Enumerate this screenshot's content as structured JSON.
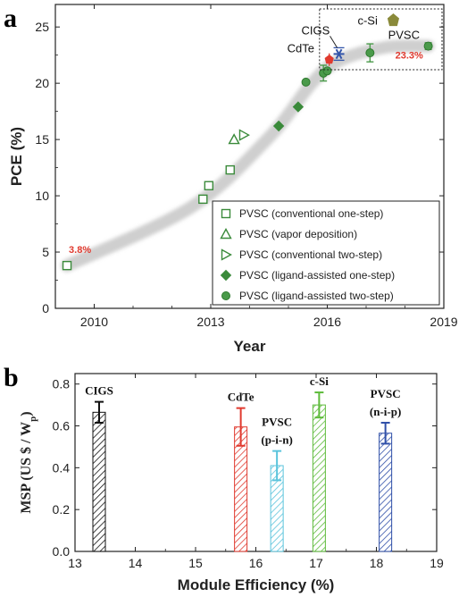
{
  "chart_data": [
    {
      "panel": "a",
      "type": "scatter",
      "xlabel": "Year",
      "ylabel": "PCE (%)",
      "xlim": [
        2009,
        2019
      ],
      "ylim": [
        0,
        27
      ],
      "xticks": [
        "2010",
        "2013",
        "2016",
        "2019"
      ],
      "yticks": [
        "0",
        "5",
        "10",
        "15",
        "20",
        "25"
      ],
      "legend_position": "bottom-right",
      "series": [
        {
          "name": "PVSC (conventional one-step)",
          "marker": "open-square",
          "color": "#3a8a3a",
          "points": [
            [
              2009.3,
              3.8
            ],
            [
              2012.8,
              9.7
            ],
            [
              2012.95,
              10.9
            ],
            [
              2013.5,
              12.3
            ]
          ]
        },
        {
          "name": "PVSC (vapor deposition)",
          "marker": "open-triangle-up",
          "color": "#3a8a3a",
          "points": [
            [
              2013.6,
              15.0
            ]
          ]
        },
        {
          "name": "PVSC (conventional two-step)",
          "marker": "open-triangle-right",
          "color": "#3a8a3a",
          "points": [
            [
              2013.85,
              15.4
            ]
          ]
        },
        {
          "name": "PVSC (ligand-assisted one-step)",
          "marker": "filled-diamond",
          "color": "#3a8a3a",
          "points": [
            [
              2014.75,
              16.2
            ],
            [
              2015.25,
              17.9
            ]
          ]
        },
        {
          "name": "PVSC (ligand-assisted two-step)",
          "marker": "filled-circle",
          "color": "#4a9a4a",
          "points": [
            [
              2015.45,
              20.1
            ],
            [
              2015.9,
              20.9
            ],
            [
              2016.0,
              21.1
            ],
            [
              2017.1,
              22.7
            ],
            [
              2018.6,
              23.3
            ]
          ],
          "errors": [
            0,
            0.7,
            0,
            0.8,
            0.3
          ]
        }
      ],
      "references": [
        {
          "label": "CdTe",
          "x": 2016.05,
          "y": 22.1,
          "color": "#e03a2f"
        },
        {
          "label": "CIGS",
          "x": 2016.3,
          "y": 22.6,
          "color": "#3355aa"
        },
        {
          "label": "c-Si",
          "x": 2017.7,
          "y": 25.6,
          "color": "#8a8a3a"
        },
        {
          "label": "PVSC",
          "x": 2018.6,
          "y": 23.3,
          "color": "#4a9a4a"
        }
      ],
      "annotations": [
        "3.8%",
        "23.3%"
      ],
      "trend": [
        [
          2009.3,
          3.8
        ],
        [
          2012.5,
          9.0
        ],
        [
          2014.5,
          15.2
        ],
        [
          2015.6,
          20.0
        ],
        [
          2016.3,
          22.0
        ],
        [
          2017.5,
          23.2
        ],
        [
          2018.6,
          23.3
        ]
      ]
    },
    {
      "panel": "b",
      "type": "bar",
      "xlabel": "Module Efficiency (%)",
      "ylabel": "MSP (US $ / W",
      "ylabel_sub": "p",
      "ylabel_tail": ")",
      "xlim": [
        13,
        19
      ],
      "ylim": [
        0,
        0.85
      ],
      "xticks": [
        "13",
        "14",
        "15",
        "16",
        "17",
        "18",
        "19"
      ],
      "yticks": [
        "0.0",
        "0.2",
        "0.4",
        "0.6",
        "0.8"
      ],
      "bars": [
        {
          "label": "CIGS",
          "x": 13.4,
          "value": 0.665,
          "error": 0.05,
          "color": "#111111"
        },
        {
          "label": "CdTe",
          "x": 15.75,
          "value": 0.595,
          "error": 0.09,
          "color": "#e03a2f"
        },
        {
          "label": "PVSC",
          "label2": "(p-i-n)",
          "x": 16.35,
          "value": 0.41,
          "error": 0.07,
          "color": "#5bc4dc"
        },
        {
          "label": "c-Si",
          "x": 17.05,
          "value": 0.7,
          "error": 0.06,
          "color": "#5dbb3a"
        },
        {
          "label": "PVSC",
          "label2": "(n-i-p)",
          "x": 18.15,
          "value": 0.565,
          "error": 0.05,
          "color": "#2f4fa8"
        }
      ]
    }
  ]
}
